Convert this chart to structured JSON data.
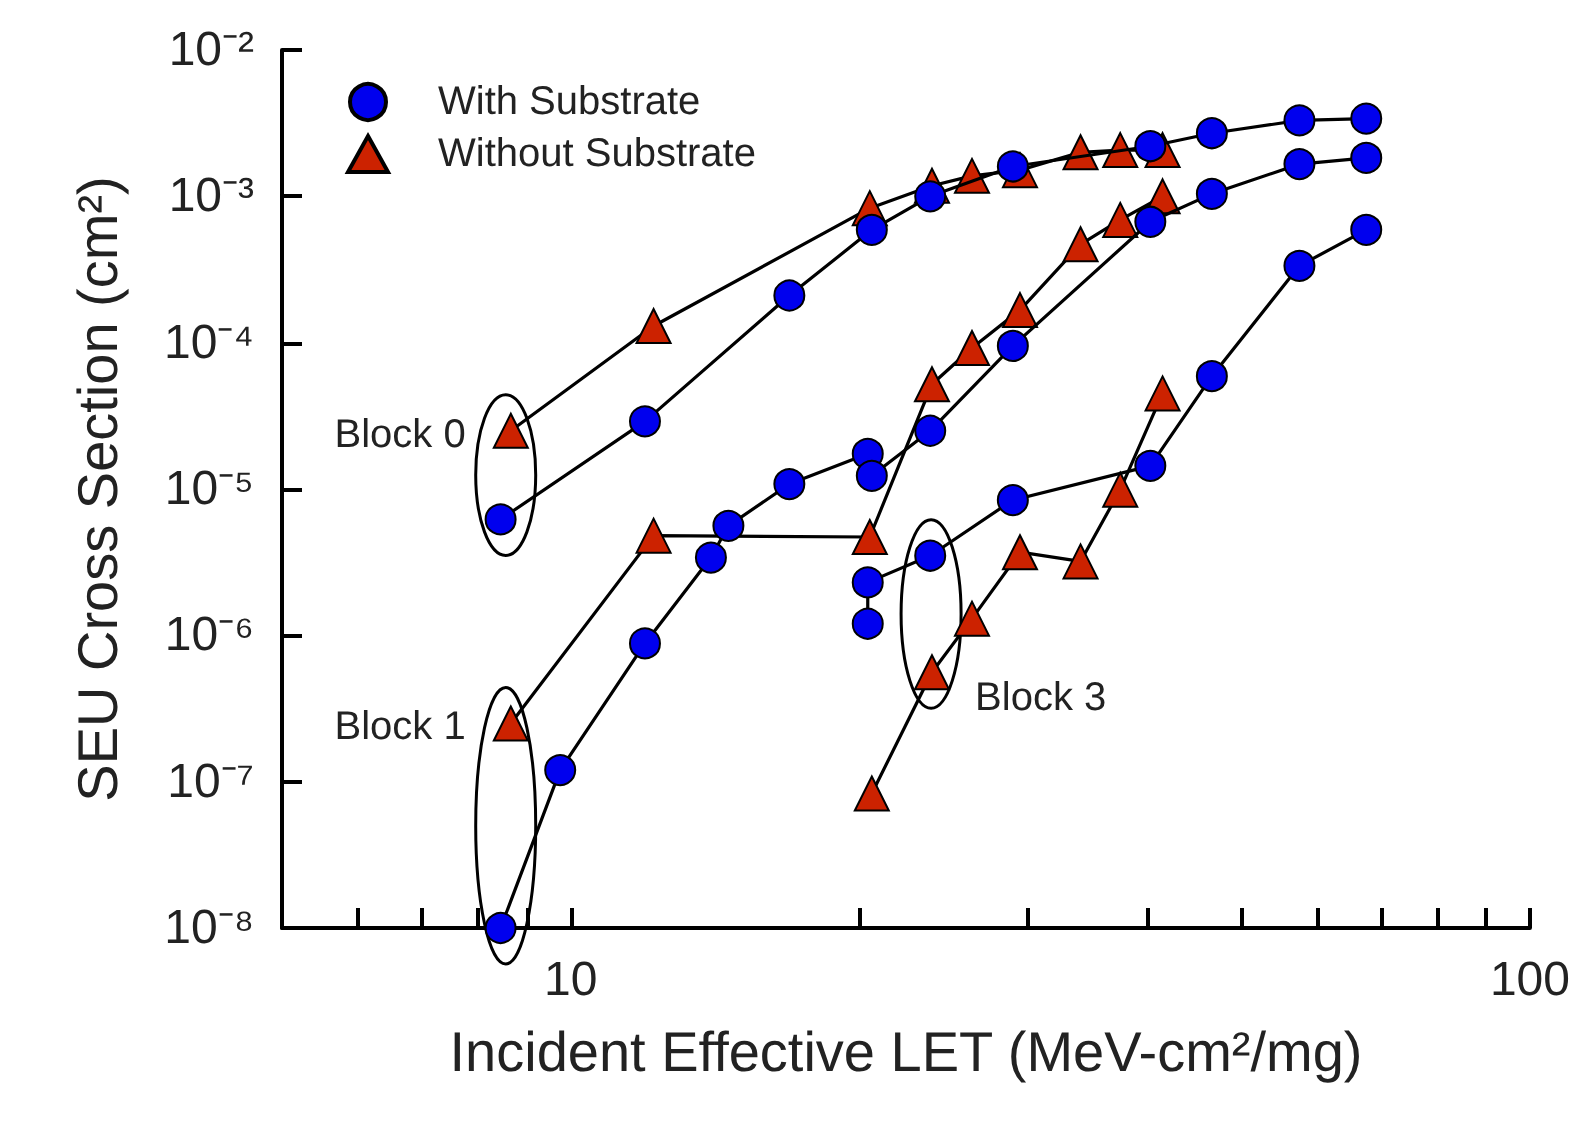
{
  "chart_data": {
    "type": "line",
    "xlabel": "Incident Effective LET (MeV-cm²/mg)",
    "ylabel": "SEU Cross Section (cm²)",
    "log": "xy",
    "xlim": [
      5,
      100
    ],
    "ylim": [
      1e-08,
      0.01
    ],
    "xticks": [
      {
        "value": 6,
        "label": null
      },
      {
        "value": 7,
        "label": null
      },
      {
        "value": 8,
        "label": null
      },
      {
        "value": 9,
        "label": null
      },
      10,
      {
        "value": 20,
        "label": null
      },
      {
        "value": 30,
        "label": null
      },
      {
        "value": 40,
        "label": null
      },
      {
        "value": 50,
        "label": null
      },
      {
        "value": 60,
        "label": null
      },
      {
        "value": 70,
        "label": null
      },
      {
        "value": 80,
        "label": null
      },
      {
        "value": 90,
        "label": null
      },
      100
    ],
    "yticks": [
      {
        "value": 1e-08,
        "label": "10⁻⁸"
      },
      {
        "value": 1e-07,
        "label": "10⁻⁷"
      },
      {
        "value": 1e-06,
        "label": "10⁻⁶"
      },
      {
        "value": 1e-05,
        "label": "10⁻⁵"
      },
      {
        "value": 0.0001,
        "label": "10⁻⁴"
      },
      {
        "value": 0.001,
        "label": "10⁻³"
      },
      {
        "value": 0.01,
        "label": "10⁻²"
      }
    ],
    "grid": false,
    "legend": "top left",
    "line_style": "solid",
    "series": [
      {
        "name": "With Substrate",
        "color": "#0000ee",
        "marker": "circle",
        "x": [
          8.45,
          11.95,
          16.9,
          20.6,
          23.7,
          28.9,
          40.2,
          46.6,
          57.5,
          67.5
        ],
        "values": [
          6.2e-06,
          2.9e-05,
          0.00021,
          0.00059,
          0.001,
          0.0016,
          0.0022,
          0.0027,
          0.0033,
          0.0034
        ]
      },
      {
        "name": "Without Substrate",
        "color": "#cc2200",
        "marker": "triangle",
        "x": [
          8.66,
          12.2,
          20.5,
          23.8,
          26.2,
          29.4,
          34,
          37.4,
          41.4
        ],
        "values": [
          2.5e-05,
          0.00013,
          0.00083,
          0.00118,
          0.00138,
          0.00151,
          0.002,
          0.00207,
          0.00207
        ]
      },
      {
        "color": "#0000ee",
        "marker": "circle",
        "x": [
          8.45,
          9.75,
          11.95,
          14,
          14.6,
          16.9,
          20.4,
          20.6,
          23.7,
          28.9,
          40.2,
          46.6,
          57.5,
          67.5
        ],
        "values": [
          1e-08,
          1.2e-07,
          8.8e-07,
          3.4e-06,
          5.6e-06,
          1.08e-05,
          1.74e-05,
          1.23e-05,
          2.5e-05,
          9.5e-05,
          0.00067,
          0.00104,
          0.00166,
          0.00183
        ]
      },
      {
        "color": "#cc2200",
        "marker": "triangle",
        "x": [
          8.66,
          12.2,
          20.5,
          23.8,
          26.2,
          29.4,
          34,
          37.4,
          41.4
        ],
        "values": [
          2.5e-07,
          4.8e-06,
          4.7e-06,
          5.2e-05,
          9.2e-05,
          0.000167,
          0.00047,
          0.00069,
          0.001
        ]
      },
      {
        "color": "#0000ee",
        "marker": "circle",
        "x": [
          20.4,
          20.4,
          23.7,
          28.9,
          40.2,
          46.6,
          57.5,
          67.5
        ],
        "values": [
          1.2e-06,
          2.3e-06,
          3.5e-06,
          8.4e-06,
          1.44e-05,
          5.9e-05,
          0.000335,
          0.00059
        ]
      },
      {
        "color": "#cc2200",
        "marker": "triangle",
        "x": [
          20.6,
          23.8,
          26.2,
          29.4,
          34,
          37.4,
          41.4
        ],
        "values": [
          8.3e-08,
          5.6e-07,
          1.3e-06,
          3.7e-06,
          3.2e-06,
          9.9e-06,
          4.5e-05
        ]
      }
    ],
    "annotations": [
      "Block 0",
      "Block 1",
      "Block 3"
    ]
  }
}
